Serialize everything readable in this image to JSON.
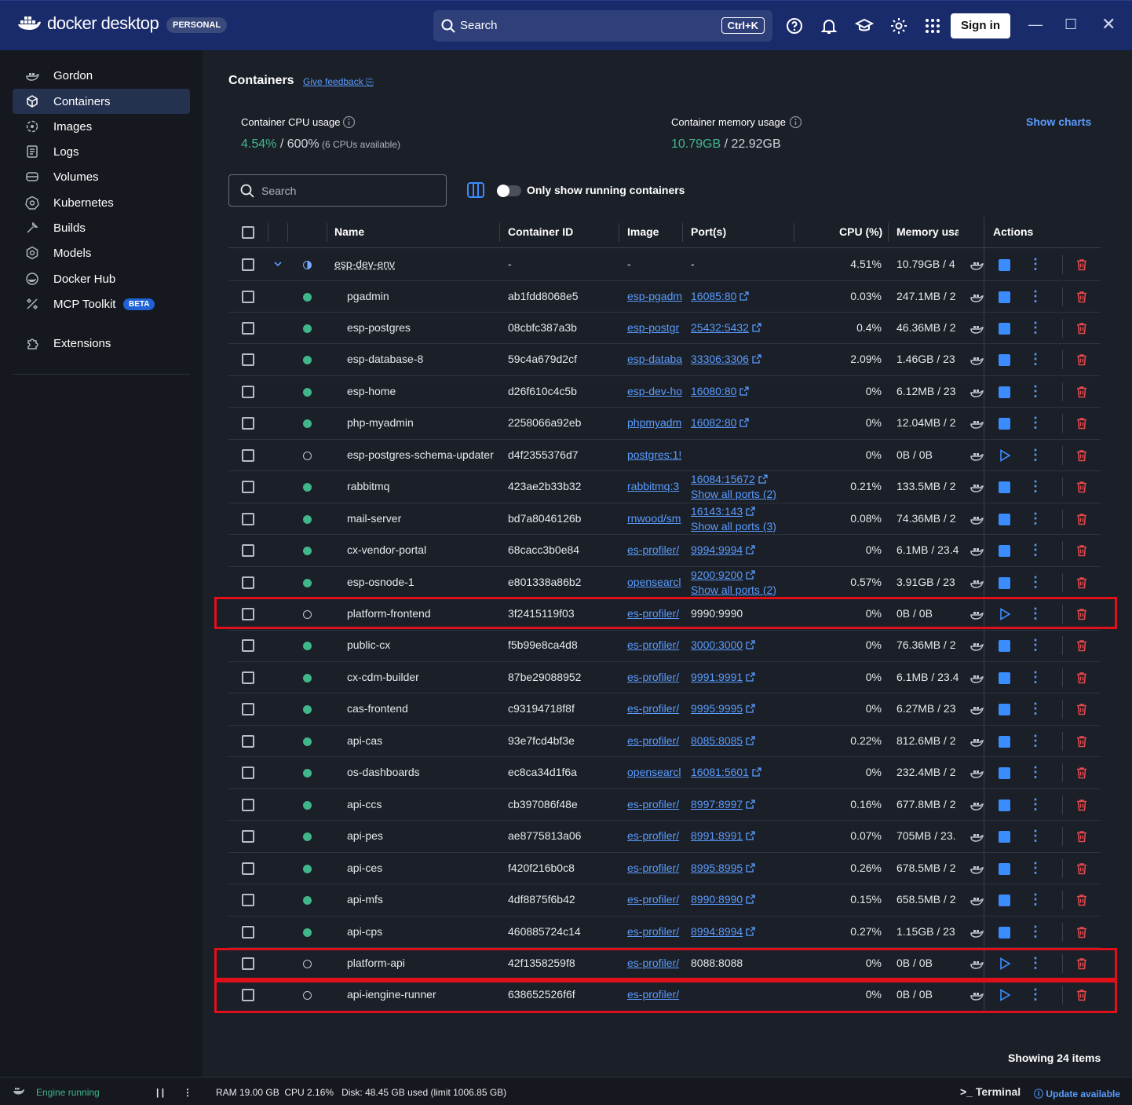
{
  "topbar": {
    "brand": "docker desktop",
    "plan": "PERSONAL",
    "search_label": "Search",
    "shortcut": "Ctrl+K",
    "sign_in": "Sign in"
  },
  "sidebar": {
    "items": [
      {
        "label": "Gordon",
        "icon": "gordon-icon"
      },
      {
        "label": "Containers",
        "icon": "containers-icon",
        "active": true
      },
      {
        "label": "Images",
        "icon": "images-icon"
      },
      {
        "label": "Logs",
        "icon": "logs-icon"
      },
      {
        "label": "Volumes",
        "icon": "volumes-icon"
      },
      {
        "label": "Kubernetes",
        "icon": "kubernetes-icon"
      },
      {
        "label": "Builds",
        "icon": "builds-icon"
      },
      {
        "label": "Models",
        "icon": "models-icon"
      },
      {
        "label": "Docker Hub",
        "icon": "docker-hub-icon"
      },
      {
        "label": "MCP Toolkit",
        "icon": "mcp-toolkit-icon"
      }
    ],
    "beta": "BETA",
    "extensions": "Extensions"
  },
  "main": {
    "title": "Containers",
    "feedback": "Give feedback",
    "cpu_label": "Container CPU usage",
    "cpu_value": "4.54%",
    "cpu_total": " / 600%",
    "cpu_note": " (6 CPUs available)",
    "mem_label": "Container memory usage",
    "mem_value": "10.79GB",
    "mem_total": " / 22.92GB",
    "show_charts": "Show charts",
    "search_placeholder": "Search",
    "toggle_label": "Only show running containers",
    "showing": "Showing 24 items"
  },
  "table": {
    "headers": {
      "name": "Name",
      "cid": "Container ID",
      "image": "Image",
      "ports": "Port(s)",
      "cpu": "CPU (%)",
      "mem": "Memory usa",
      "actions": "Actions"
    },
    "group": {
      "name": "esp-dev-env",
      "cid": "-",
      "image": "-",
      "port": "-",
      "cpu": "4.51%",
      "mem": "10.79GB / 4"
    },
    "rows": [
      {
        "name": "pgadmin",
        "cid": "ab1fdd8068e5",
        "image": "esp-pgadm",
        "port": "16085:80",
        "cpu": "0.03%",
        "mem": "247.1MB / 2",
        "running": true
      },
      {
        "name": "esp-postgres",
        "cid": "08cbfc387a3b",
        "image": "esp-postgr",
        "port": "25432:5432",
        "cpu": "0.4%",
        "mem": "46.36MB / 2",
        "running": true
      },
      {
        "name": "esp-database-8",
        "cid": "59c4a679d2cf",
        "image": "esp-databa",
        "port": "33306:3306",
        "cpu": "2.09%",
        "mem": "1.46GB / 23",
        "running": true
      },
      {
        "name": "esp-home",
        "cid": "d26f610c4c5b",
        "image": "esp-dev-ho",
        "port": "16080:80",
        "cpu": "0%",
        "mem": "6.12MB / 23",
        "running": true
      },
      {
        "name": "php-myadmin",
        "cid": "2258066a92eb",
        "image": "phpmyadm",
        "port": "16082:80",
        "cpu": "0%",
        "mem": "12.04MB / 2",
        "running": true
      },
      {
        "name": "esp-postgres-schema-updater",
        "cid": "d4f2355376d7",
        "image": "postgres:1!",
        "port": "",
        "cpu": "0%",
        "mem": "0B / 0B",
        "running": false
      },
      {
        "name": "rabbitmq",
        "cid": "423ae2b33b32",
        "image": "rabbitmq:3",
        "port": "16084:15672",
        "port_more": "Show all ports (2)",
        "cpu": "0.21%",
        "mem": "133.5MB / 2",
        "running": true
      },
      {
        "name": "mail-server",
        "cid": "bd7a8046126b",
        "image": "rnwood/sm",
        "port": "16143:143",
        "port_more": "Show all ports (3)",
        "cpu": "0.08%",
        "mem": "74.36MB / 2",
        "running": true
      },
      {
        "name": "cx-vendor-portal",
        "cid": "68cacc3b0e84",
        "image": "es-profiler/",
        "port": "9994:9994",
        "cpu": "0%",
        "mem": "6.1MB / 23.4",
        "running": true
      },
      {
        "name": "esp-osnode-1",
        "cid": "e801338a86b2",
        "image": "opensearcl",
        "port": "9200:9200",
        "port_more": "Show all ports (2)",
        "cpu": "0.57%",
        "mem": "3.91GB / 23",
        "running": true
      },
      {
        "name": "platform-frontend",
        "cid": "3f2415119f03",
        "image": "es-profiler/",
        "port": "9990:9990",
        "port_plain": true,
        "cpu": "0%",
        "mem": "0B / 0B",
        "running": false
      },
      {
        "name": "public-cx",
        "cid": "f5b99e8ca4d8",
        "image": "es-profiler/",
        "port": "3000:3000",
        "cpu": "0%",
        "mem": "76.36MB / 2",
        "running": true
      },
      {
        "name": "cx-cdm-builder",
        "cid": "87be29088952",
        "image": "es-profiler/",
        "port": "9991:9991",
        "cpu": "0%",
        "mem": "6.1MB / 23.4",
        "running": true
      },
      {
        "name": "cas-frontend",
        "cid": "c93194718f8f",
        "image": "es-profiler/",
        "port": "9995:9995",
        "cpu": "0%",
        "mem": "6.27MB / 23",
        "running": true
      },
      {
        "name": "api-cas",
        "cid": "93e7fcd4bf3e",
        "image": "es-profiler/",
        "port": "8085:8085",
        "cpu": "0.22%",
        "mem": "812.6MB / 2",
        "running": true
      },
      {
        "name": "os-dashboards",
        "cid": "ec8ca34d1f6a",
        "image": "opensearcl",
        "port": "16081:5601",
        "cpu": "0%",
        "mem": "232.4MB / 2",
        "running": true
      },
      {
        "name": "api-ccs",
        "cid": "cb397086f48e",
        "image": "es-profiler/",
        "port": "8997:8997",
        "cpu": "0.16%",
        "mem": "677.8MB / 2",
        "running": true
      },
      {
        "name": "api-pes",
        "cid": "ae8775813a06",
        "image": "es-profiler/",
        "port": "8991:8991",
        "cpu": "0.07%",
        "mem": "705MB / 23.",
        "running": true
      },
      {
        "name": "api-ces",
        "cid": "f420f216b0c8",
        "image": "es-profiler/",
        "port": "8995:8995",
        "cpu": "0.26%",
        "mem": "678.5MB / 2",
        "running": true
      },
      {
        "name": "api-mfs",
        "cid": "4df8875f6b42",
        "image": "es-profiler/",
        "port": "8990:8990",
        "cpu": "0.15%",
        "mem": "658.5MB / 2",
        "running": true
      },
      {
        "name": "api-cps",
        "cid": "460885724c14",
        "image": "es-profiler/",
        "port": "8994:8994",
        "cpu": "0.27%",
        "mem": "1.15GB / 23",
        "running": true
      },
      {
        "name": "platform-api",
        "cid": "42f1358259f8",
        "image": "es-profiler/",
        "port": "8088:8088",
        "port_plain": true,
        "cpu": "0%",
        "mem": "0B / 0B",
        "running": false
      },
      {
        "name": "api-iengine-runner",
        "cid": "638652526f6f",
        "image": "es-profiler/",
        "port": "",
        "cpu": "0%",
        "mem": "0B / 0B",
        "running": false
      }
    ]
  },
  "statusbar": {
    "engine": "Engine running",
    "stats": "RAM 19.00 GB  CPU 2.16%   Disk: 48.45 GB used (limit 1006.85 GB)",
    "terminal": "Terminal",
    "update": "Update available"
  },
  "colors": {
    "accent": "#3a8cff",
    "running": "#3fb78a",
    "delete": "#e5484d",
    "highlight": "#e0101a",
    "topbar": "#1a2b6b"
  }
}
